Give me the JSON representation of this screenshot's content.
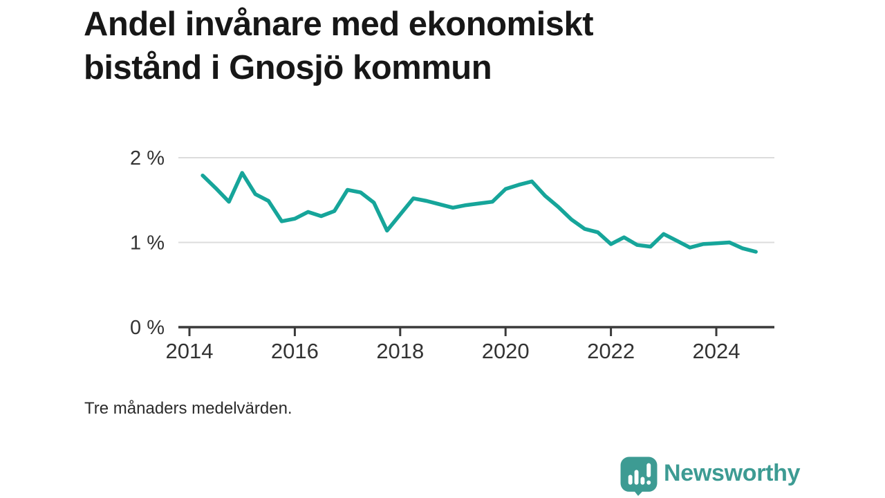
{
  "title_lines": [
    "Andel invånare med ekonomiskt",
    "bistånd i Gnosjö kommun"
  ],
  "footnote": "Tre månaders medelvärden.",
  "logo": {
    "name": "Newsworthy",
    "icon": "newsworthy-speech-bubble-bar-chart-icon"
  },
  "colors": {
    "background": "#ffffff",
    "title": "#171717",
    "line": "#16a59a",
    "logo": "#3d9b93",
    "axis": "#3a3a3a",
    "tick_label": "#333333",
    "gridline": "#dcdcdc",
    "footnote_text": "#2b2b2b"
  },
  "chart_data": {
    "type": "line",
    "title": "Andel invånare med ekonomiskt bistånd i Gnosjö kommun",
    "subtitle": "Tre månaders medelvärden.",
    "unit": "%",
    "xlabel": "",
    "ylabel": "",
    "grid": "horizontal",
    "legend": "none",
    "line_color": "#16a59a",
    "xlim": [
      2013.8,
      2025.1
    ],
    "ylim": [
      0,
      2.15
    ],
    "xticks": [
      2014,
      2016,
      2018,
      2020,
      2022,
      2024
    ],
    "xtick_labels": [
      "2014",
      "2016",
      "2018",
      "2020",
      "2022",
      "2024"
    ],
    "yticks": [
      0,
      1,
      2
    ],
    "ytick_labels": [
      "0 %",
      "1 %",
      "2 %"
    ],
    "x": [
      2014.25,
      2014.5,
      2014.75,
      2015.0,
      2015.25,
      2015.5,
      2015.75,
      2016.0,
      2016.25,
      2016.5,
      2016.75,
      2017.0,
      2017.25,
      2017.5,
      2017.75,
      2018.0,
      2018.25,
      2018.5,
      2018.75,
      2019.0,
      2019.25,
      2019.5,
      2019.75,
      2020.0,
      2020.25,
      2020.5,
      2020.75,
      2021.0,
      2021.25,
      2021.5,
      2021.75,
      2022.0,
      2022.25,
      2022.5,
      2022.75,
      2023.0,
      2023.25,
      2023.5,
      2023.75,
      2024.0,
      2024.25,
      2024.5,
      2024.75
    ],
    "values": [
      1.79,
      1.64,
      1.48,
      1.82,
      1.57,
      1.49,
      1.25,
      1.28,
      1.36,
      1.31,
      1.37,
      1.62,
      1.59,
      1.47,
      1.14,
      1.33,
      1.52,
      1.49,
      1.45,
      1.41,
      1.44,
      1.46,
      1.48,
      1.63,
      1.68,
      1.72,
      1.55,
      1.42,
      1.27,
      1.16,
      1.12,
      0.98,
      1.06,
      0.97,
      0.95,
      1.1,
      1.02,
      0.94,
      0.98,
      0.99,
      1.0,
      0.93,
      0.89
    ]
  }
}
